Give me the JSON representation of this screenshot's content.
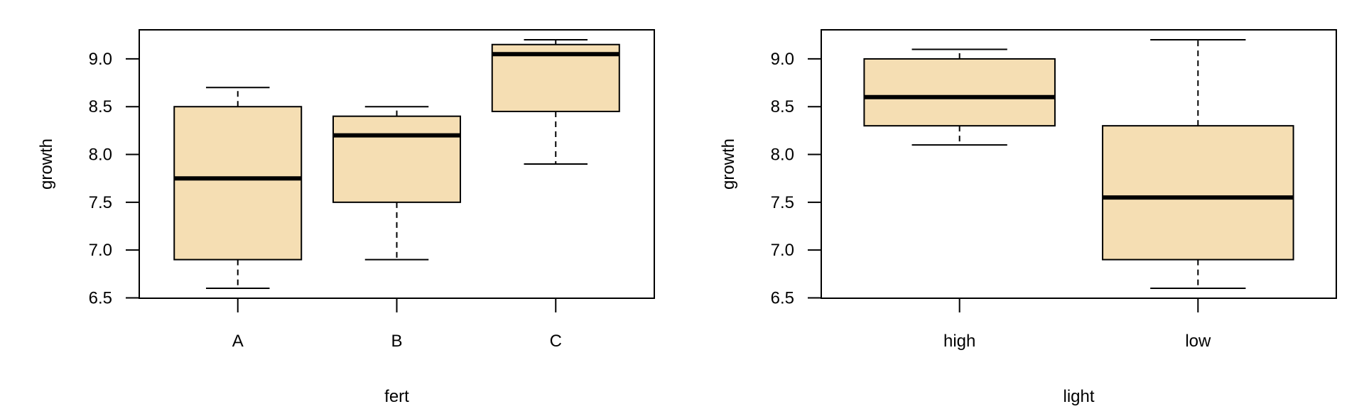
{
  "chart_data": [
    {
      "type": "box",
      "xlabel": "fert",
      "ylabel": "growth",
      "categories": [
        "A",
        "B",
        "C"
      ],
      "ylim": [
        6.496,
        9.304
      ],
      "yticks": [
        "6.5",
        "7.0",
        "7.5",
        "8.0",
        "8.5",
        "9.0"
      ],
      "boxes": [
        {
          "min": 6.6,
          "q1": 6.9,
          "median": 7.75,
          "q3": 8.5,
          "max": 8.7
        },
        {
          "min": 6.9,
          "q1": 7.5,
          "median": 8.2,
          "q3": 8.4,
          "max": 8.5
        },
        {
          "min": 7.9,
          "q1": 8.45,
          "median": 9.05,
          "q3": 9.15,
          "max": 9.2
        }
      ],
      "grid": false
    },
    {
      "type": "box",
      "xlabel": "light",
      "ylabel": "growth",
      "categories": [
        "high",
        "low"
      ],
      "ylim": [
        6.496,
        9.304
      ],
      "yticks": [
        "6.5",
        "7.0",
        "7.5",
        "8.0",
        "8.5",
        "9.0"
      ],
      "boxes": [
        {
          "min": 8.1,
          "q1": 8.3,
          "median": 8.6,
          "q3": 9.0,
          "max": 9.1
        },
        {
          "min": 6.6,
          "q1": 6.9,
          "median": 7.55,
          "q3": 8.3,
          "max": 9.2
        }
      ],
      "grid": false
    }
  ],
  "colors": {
    "box_fill": "#F5DEB3",
    "line": "#000000"
  }
}
